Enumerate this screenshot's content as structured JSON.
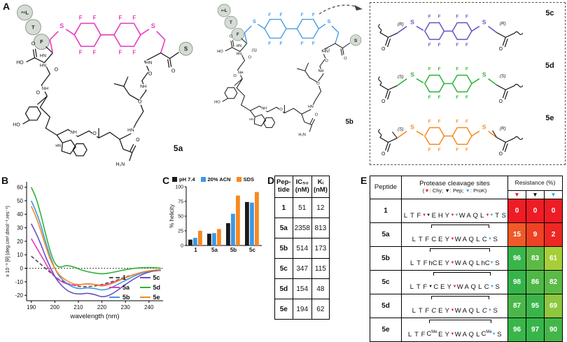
{
  "figure": {
    "panel_labels": {
      "A": "A",
      "B": "B",
      "C": "C",
      "D": "D",
      "E": "E"
    }
  },
  "panelA": {
    "atoms": {
      "F": "F",
      "S": "S",
      "O": "O",
      "NH": "NH",
      "HN": "HN",
      "HO": "HO",
      "H2N": "H₂N"
    },
    "nterm": [
      {
        "sup": "Ac",
        "main": "L"
      },
      {
        "main": "T"
      },
      {
        "main": "F"
      }
    ],
    "cterm_thioester": "S",
    "macrocycles": [
      {
        "name": "5a",
        "color": "#e83ac1",
        "stereo": []
      },
      {
        "name": "5b",
        "color": "#3e97e6",
        "stereo": [
          "(S)",
          "(S)"
        ]
      }
    ],
    "variants": [
      {
        "name": "5c",
        "color": "#6a4fc4",
        "stereo_left": "(R)",
        "stereo_right": "(R)",
        "alpha_methyl": false
      },
      {
        "name": "5d",
        "color": "#2eb335",
        "stereo_left": "(S)",
        "stereo_right": "(S)",
        "alpha_methyl": false
      },
      {
        "name": "5e",
        "color": "#f6891f",
        "stereo_left": "(S)",
        "stereo_right": "(R)",
        "alpha_methyl": true
      }
    ]
  },
  "chart_data": [
    {
      "id": "cd-spectra",
      "type": "line",
      "xlabel": "wavelength (nm)",
      "ylabel": "x 10⁻³ [θ] (deg.cm².dmol⁻¹.res⁻¹)",
      "xlim": [
        188,
        246
      ],
      "ylim": [
        -24,
        64
      ],
      "xticks": [
        190,
        200,
        210,
        220,
        230,
        240
      ],
      "yticks": [
        -20,
        -10,
        0,
        10,
        20,
        30,
        40,
        50,
        60
      ],
      "zero_line": true,
      "legend_position": "bottom-right",
      "grid": false,
      "x": [
        190,
        192,
        194,
        196,
        198,
        200,
        202,
        205,
        208,
        211,
        214,
        217,
        220,
        223,
        226,
        230,
        234,
        238,
        242,
        245
      ],
      "series": [
        {
          "name": "1",
          "color": "#4d4d4d",
          "dash": true,
          "y": [
            9,
            6,
            3,
            0,
            -3,
            -6,
            -8.5,
            -11,
            -12.5,
            -13.5,
            -13.5,
            -13,
            -12,
            -10.5,
            -9,
            -6.5,
            -4.5,
            -3,
            -2,
            -1.5
          ]
        },
        {
          "name": "5a",
          "color": "#e83ac1",
          "dash": false,
          "y": [
            22,
            16,
            10,
            4,
            -2,
            -6,
            -9,
            -11.5,
            -12.5,
            -12,
            -11.5,
            -12,
            -12.5,
            -11.5,
            -9.5,
            -7,
            -4.5,
            -2.5,
            -1.5,
            -1
          ]
        },
        {
          "name": "5b",
          "color": "#3e97e6",
          "dash": false,
          "y": [
            50,
            42,
            32,
            20,
            9,
            0,
            -6,
            -11,
            -14,
            -15,
            -14.5,
            -15,
            -16,
            -15,
            -12.5,
            -9,
            -5.5,
            -3,
            -1.5,
            -1
          ]
        },
        {
          "name": "5c",
          "color": "#6a4fc4",
          "dash": false,
          "y": [
            33,
            26,
            18,
            9,
            1,
            -6,
            -11,
            -16,
            -18.5,
            -19,
            -18.5,
            -19.5,
            -21,
            -20,
            -17,
            -12,
            -7.5,
            -4,
            -2,
            -1.5
          ]
        },
        {
          "name": "5d",
          "color": "#2eb335",
          "dash": false,
          "y": [
            60,
            52,
            40,
            26,
            13,
            4,
            1,
            2,
            1,
            -1,
            -2.5,
            -3.5,
            -4,
            -3.5,
            -2.5,
            -1,
            0,
            0.5,
            0.5,
            0
          ]
        },
        {
          "name": "5e",
          "color": "#f6891f",
          "dash": false,
          "y": [
            46,
            38,
            28,
            17,
            7,
            0,
            -5,
            -9,
            -11.5,
            -12,
            -11.5,
            -12,
            -13,
            -12,
            -10,
            -7,
            -4.5,
            -2.5,
            -1.5,
            -1
          ]
        }
      ]
    },
    {
      "id": "helicity",
      "type": "bar",
      "ylabel": "% helicity",
      "categories": [
        "1",
        "5a",
        "5b",
        "5c"
      ],
      "ylim": [
        0,
        100
      ],
      "yticks": [
        0,
        25,
        50,
        75,
        100
      ],
      "legend_position": "top",
      "grid": false,
      "series": [
        {
          "name": "pH 7.4",
          "color": "#1a1a1a",
          "values": [
            10,
            20,
            38,
            74
          ]
        },
        {
          "name": "20% ACN",
          "color": "#3e97e6",
          "values": [
            13,
            21,
            54,
            73
          ]
        },
        {
          "name": "SDS",
          "color": "#f6891f",
          "values": [
            25,
            28,
            85,
            91
          ]
        }
      ]
    }
  ],
  "panelD": {
    "headers": [
      [
        "Pep-",
        "tide"
      ],
      [
        "IC₅₀",
        "(nM)"
      ],
      [
        "Kᵢ",
        "(nM)"
      ]
    ],
    "rows": [
      {
        "peptide": "1",
        "ic50": "51",
        "ki": "12"
      },
      {
        "peptide": "5a",
        "ic50": "2358",
        "ki": "813"
      },
      {
        "peptide": "5b",
        "ic50": "514",
        "ki": "173"
      },
      {
        "peptide": "5c",
        "ic50": "347",
        "ki": "115"
      },
      {
        "peptide": "5d",
        "ic50": "154",
        "ki": "48"
      },
      {
        "peptide": "5e",
        "ic50": "194",
        "ki": "62"
      }
    ]
  },
  "panelE": {
    "header_peptide": "Peptide",
    "header_sites": "Protease cleavage sites",
    "proteases": [
      {
        "name": "Chy",
        "color": "#ee1c25"
      },
      {
        "name": "Pep",
        "color": "#111111"
      },
      {
        "name": "ProK",
        "color": "#45a7e0"
      }
    ],
    "header_resistance": "Resistance (%)",
    "rows": [
      {
        "peptide": "1",
        "seq": [
          "L",
          "T",
          "F",
          "E",
          "H",
          "Y",
          "W",
          "A",
          "Q",
          "L",
          "T",
          "S"
        ],
        "markers": [
          {
            "after": 2,
            "keys": [
              "Chy",
              "Pep"
            ]
          },
          {
            "after": 5,
            "keys": [
              "Chy",
              "ProK"
            ]
          },
          {
            "after": 9,
            "keys": [
              "Chy",
              "ProK"
            ]
          }
        ],
        "staple": null,
        "resistance": [
          {
            "value": "0",
            "color": "#ee1c25"
          },
          {
            "value": "0",
            "color": "#ee1c25"
          },
          {
            "value": "0",
            "color": "#ee1c25"
          }
        ]
      },
      {
        "peptide": "5a",
        "seq": [
          "L",
          "T",
          "F",
          "C",
          "E",
          "Y",
          "W",
          "A",
          "Q",
          "L",
          "C",
          "S"
        ],
        "markers": [
          {
            "after": 5,
            "keys": [
              "Chy"
            ]
          },
          {
            "after": 10,
            "keys": [
              "ProK"
            ]
          }
        ],
        "staple": [
          3,
          10
        ],
        "resistance": [
          {
            "value": "15",
            "color": "#f05a28"
          },
          {
            "value": "9",
            "color": "#ef4123"
          },
          {
            "value": "2",
            "color": "#ee2724"
          }
        ]
      },
      {
        "peptide": "5b",
        "seq": [
          "L",
          "T",
          "F",
          "hC",
          "E",
          "Y",
          "W",
          "A",
          "Q",
          "L",
          "hC",
          "S"
        ],
        "markers": [
          {
            "after": 5,
            "keys": [
              "Chy"
            ]
          },
          {
            "after": 10,
            "keys": [
              "ProK"
            ]
          }
        ],
        "staple": [
          3,
          10
        ],
        "resistance": [
          {
            "value": "96",
            "color": "#39b54a"
          },
          {
            "value": "83",
            "color": "#5dba46"
          },
          {
            "value": "61",
            "color": "#a6ce39"
          }
        ]
      },
      {
        "peptide": "5c",
        "seq": [
          "L",
          "T",
          "F",
          "C",
          "E",
          "Y",
          "W",
          "A",
          "Q",
          "L",
          "C",
          "S"
        ],
        "markers": [
          {
            "after": 2,
            "keys": [
              "Pep"
            ]
          },
          {
            "after": 5,
            "keys": [
              "Chy"
            ]
          },
          {
            "after": 10,
            "keys": [
              "ProK"
            ]
          }
        ],
        "staple": [
          3,
          10
        ],
        "resistance": [
          {
            "value": "98",
            "color": "#35b44a"
          },
          {
            "value": "86",
            "color": "#4fb748"
          },
          {
            "value": "82",
            "color": "#5cba46"
          }
        ]
      },
      {
        "peptide": "5d",
        "seq": [
          "L",
          "T",
          "F",
          {
            "t": "C",
            "italic": true
          },
          "E",
          "Y",
          "W",
          "A",
          "Q",
          "L",
          {
            "t": "C",
            "italic": true
          },
          "S"
        ],
        "markers": [
          {
            "after": 5,
            "keys": [
              "Chy"
            ]
          },
          {
            "after": 10,
            "keys": [
              "ProK"
            ]
          }
        ],
        "staple": [
          3,
          10
        ],
        "resistance": [
          {
            "value": "87",
            "color": "#4bb749"
          },
          {
            "value": "95",
            "color": "#3bb54a"
          },
          {
            "value": "69",
            "color": "#8dc63f"
          }
        ]
      },
      {
        "peptide": "5e",
        "seq": [
          "L",
          "T",
          "F",
          {
            "t": "C",
            "sup": "Me"
          },
          "E",
          "Y",
          "W",
          "A",
          "Q",
          "L",
          {
            "t": "C",
            "sup": "Me"
          },
          "S"
        ],
        "markers": [
          {
            "after": 5,
            "keys": [
              "Chy"
            ]
          },
          {
            "after": 10,
            "keys": [
              "ProK"
            ]
          }
        ],
        "staple": [
          3,
          10
        ],
        "resistance": [
          {
            "value": "96",
            "color": "#39b54a"
          },
          {
            "value": "97",
            "color": "#38b54a"
          },
          {
            "value": "90",
            "color": "#44b649"
          }
        ]
      }
    ]
  }
}
